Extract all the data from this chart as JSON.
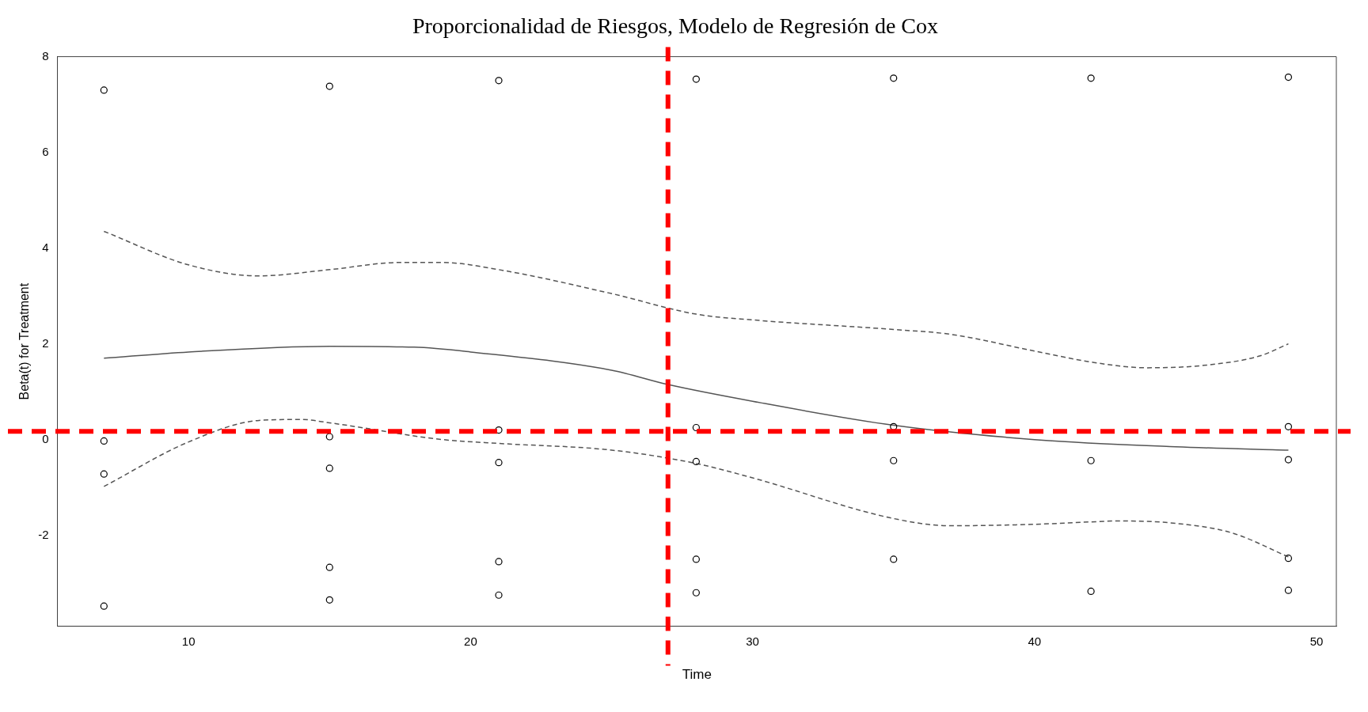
{
  "chart_data": {
    "type": "scatter",
    "title": "Proporcionalidad de Riesgos, Modelo de Regresión de Cox",
    "xlabel": "Time",
    "ylabel": "Beta(t) for Treatment",
    "xlim": [
      5.35,
      50.7
    ],
    "xticks": [
      10,
      20,
      30,
      40,
      50
    ],
    "ylim": [
      -3.9,
      8
    ],
    "yticks": [
      -2,
      0,
      2,
      4,
      6,
      8
    ],
    "grid": false,
    "legend": false,
    "series": [
      {
        "color": "#000000",
        "marker": "circle",
        "x": [
          7,
          7,
          7,
          7,
          15,
          15,
          15,
          15,
          15,
          21,
          21,
          21,
          21,
          21,
          28,
          28,
          28,
          28,
          28,
          35,
          35,
          35,
          35,
          42,
          42,
          42,
          49,
          49,
          49,
          49,
          49
        ],
        "values": [
          7.3,
          -0.03,
          -0.72,
          -3.48,
          7.38,
          0.06,
          -0.6,
          -2.67,
          -3.35,
          7.5,
          0.2,
          -0.48,
          -2.55,
          -3.25,
          7.53,
          0.25,
          -0.46,
          -2.5,
          -3.2,
          7.55,
          0.27,
          -0.44,
          -2.5,
          7.55,
          -0.44,
          -3.17,
          7.57,
          0.27,
          -0.42,
          -2.48,
          -3.15
        ]
      },
      {
        "type": "line",
        "color": "#555555",
        "line_style": "solid",
        "x": [
          7,
          10,
          15,
          18,
          20,
          25,
          27,
          30,
          35,
          40,
          45,
          49
        ],
        "values": [
          1.7,
          1.83,
          1.95,
          1.93,
          1.83,
          1.45,
          1.15,
          0.8,
          0.3,
          0.0,
          -0.15,
          -0.22
        ]
      },
      {
        "type": "line",
        "color": "#555555",
        "line_style": "dashed",
        "x": [
          7,
          10,
          12.5,
          15,
          17.5,
          19,
          21,
          25,
          28,
          30,
          35,
          37,
          40,
          42,
          44,
          46,
          48,
          49
        ],
        "values": [
          4.35,
          3.65,
          3.42,
          3.55,
          3.7,
          3.7,
          3.55,
          3.05,
          2.62,
          2.5,
          2.3,
          2.2,
          1.85,
          1.62,
          1.5,
          1.55,
          1.75,
          2.0
        ]
      },
      {
        "type": "line",
        "color": "#555555",
        "line_style": "dashed",
        "x": [
          7,
          10,
          12.5,
          14,
          15,
          19,
          21,
          25,
          28,
          30,
          35,
          37,
          40,
          42,
          43,
          45,
          47,
          49
        ],
        "values": [
          -0.98,
          -0.05,
          0.4,
          0.42,
          0.35,
          0.0,
          -0.08,
          -0.22,
          -0.5,
          -0.8,
          -1.65,
          -1.8,
          -1.77,
          -1.72,
          -1.7,
          -1.75,
          -1.95,
          -2.45
        ]
      }
    ],
    "ref_lines": [
      {
        "axis": "y",
        "value": 0.17,
        "color": "#ff0000",
        "line_style": "dashed"
      },
      {
        "axis": "x",
        "value": 27,
        "color": "#ff0000",
        "line_style": "dashed"
      }
    ]
  }
}
